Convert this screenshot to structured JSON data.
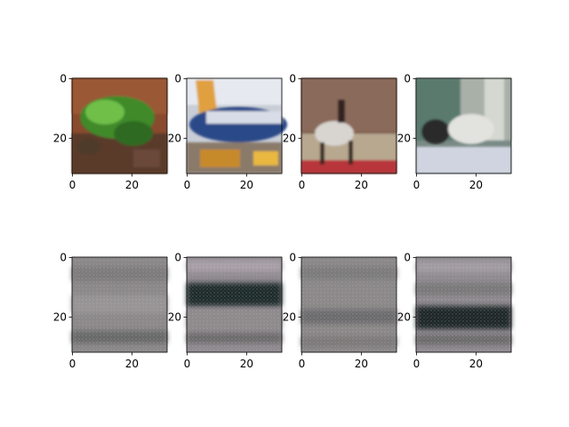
{
  "figure": {
    "grid": {
      "rows": 2,
      "cols": 4
    },
    "axis_ticks": {
      "x": [
        "0",
        "20"
      ],
      "y": [
        "0",
        "20"
      ]
    },
    "panels": [
      {
        "row": 0,
        "col": 0,
        "content": "frog on red-brown ground",
        "kind": "input"
      },
      {
        "row": 0,
        "col": 1,
        "content": "airplane with blue fuselage",
        "kind": "input"
      },
      {
        "row": 0,
        "col": 2,
        "content": "horse and rider in arena",
        "kind": "input"
      },
      {
        "row": 0,
        "col": 3,
        "content": "cat on white surface",
        "kind": "input"
      },
      {
        "row": 1,
        "col": 0,
        "content": "blurry grey reconstruction",
        "kind": "reconstruction"
      },
      {
        "row": 1,
        "col": 1,
        "content": "blurry reconstruction with dark horizontal band",
        "kind": "reconstruction"
      },
      {
        "row": 1,
        "col": 2,
        "content": "blurry grey reconstruction",
        "kind": "reconstruction"
      },
      {
        "row": 1,
        "col": 3,
        "content": "blurry reconstruction with dark horizontal band",
        "kind": "reconstruction"
      }
    ]
  }
}
